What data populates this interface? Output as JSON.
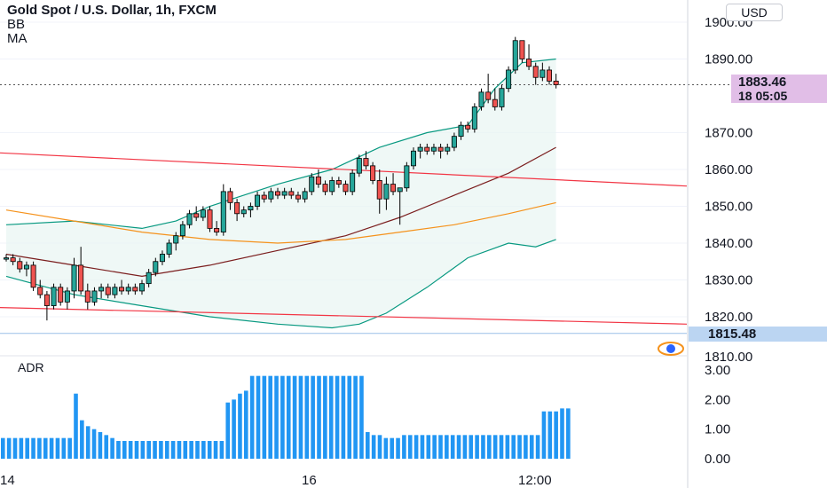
{
  "header": {
    "symbol_title": "Gold Spot / U.S. Dollar, 1h, FXCM",
    "indicators": [
      "BB",
      "MA"
    ],
    "currency": "USD"
  },
  "price_badges": {
    "last_price": "1883.46",
    "countdown_partial": "18 05:05",
    "low_line": "1815.48",
    "cut_label": "1810.00"
  },
  "adr_panel": {
    "label": "ADR",
    "ticks": [
      "3.00",
      "2.00",
      "1.00",
      "0.00"
    ]
  },
  "x_axis": {
    "ticks": [
      "14",
      "16",
      "12:00"
    ]
  },
  "colors": {
    "up": "#26a69a",
    "down": "#ef5350",
    "bb_band": "#089981",
    "bb_fill": "#e8f5f2",
    "ma_short": "#7b1e1e",
    "ma_long": "#f5921c",
    "trendline": "#f23645",
    "adr_bar": "#2196f3",
    "low_line": "#9cc0e8"
  },
  "chart_data": {
    "type": "candlestick",
    "title": "Gold Spot / U.S. Dollar, 1h, FXCM",
    "y_axis": {
      "ticks": [
        1900,
        1890,
        1870,
        1860,
        1850,
        1840,
        1830,
        1820
      ],
      "range": [
        1810,
        1902
      ]
    },
    "ohlc": [
      [
        1836,
        1837,
        1835,
        1836
      ],
      [
        1836,
        1837,
        1834,
        1835
      ],
      [
        1835,
        1836,
        1832,
        1833
      ],
      [
        1833,
        1835,
        1831,
        1834
      ],
      [
        1834,
        1835,
        1827,
        1828
      ],
      [
        1828,
        1830,
        1825,
        1826
      ],
      [
        1826,
        1827,
        1819,
        1823
      ],
      [
        1823,
        1829,
        1822,
        1828
      ],
      [
        1828,
        1829,
        1823,
        1824
      ],
      [
        1824,
        1828,
        1822,
        1827
      ],
      [
        1827,
        1836,
        1825,
        1834
      ],
      [
        1834,
        1839,
        1826,
        1827
      ],
      [
        1827,
        1829,
        1822,
        1824
      ],
      [
        1824,
        1828,
        1823,
        1827
      ],
      [
        1827,
        1829,
        1825,
        1828
      ],
      [
        1828,
        1829,
        1825,
        1826
      ],
      [
        1826,
        1829,
        1825,
        1828
      ],
      [
        1828,
        1830,
        1826,
        1827
      ],
      [
        1827,
        1829,
        1826,
        1828
      ],
      [
        1828,
        1829,
        1826,
        1827
      ],
      [
        1827,
        1830,
        1826,
        1829
      ],
      [
        1829,
        1833,
        1828,
        1832
      ],
      [
        1832,
        1836,
        1831,
        1835
      ],
      [
        1835,
        1838,
        1834,
        1837
      ],
      [
        1837,
        1841,
        1836,
        1840
      ],
      [
        1840,
        1843,
        1838,
        1842
      ],
      [
        1842,
        1846,
        1841,
        1845
      ],
      [
        1845,
        1849,
        1844,
        1848
      ],
      [
        1848,
        1850,
        1846,
        1847
      ],
      [
        1847,
        1850,
        1846,
        1849
      ],
      [
        1849,
        1850,
        1843,
        1844
      ],
      [
        1844,
        1846,
        1842,
        1843
      ],
      [
        1843,
        1856,
        1842,
        1854
      ],
      [
        1854,
        1855,
        1849,
        1851
      ],
      [
        1851,
        1852,
        1846,
        1848
      ],
      [
        1848,
        1850,
        1847,
        1849
      ],
      [
        1849,
        1851,
        1847,
        1850
      ],
      [
        1850,
        1854,
        1849,
        1853
      ],
      [
        1853,
        1854,
        1851,
        1852
      ],
      [
        1852,
        1855,
        1851,
        1854
      ],
      [
        1854,
        1855,
        1852,
        1853
      ],
      [
        1853,
        1855,
        1852,
        1854
      ],
      [
        1854,
        1855,
        1852,
        1853
      ],
      [
        1853,
        1854,
        1851,
        1852
      ],
      [
        1852,
        1855,
        1851,
        1854
      ],
      [
        1854,
        1859,
        1853,
        1858
      ],
      [
        1858,
        1860,
        1855,
        1856
      ],
      [
        1856,
        1857,
        1853,
        1854
      ],
      [
        1854,
        1858,
        1853,
        1857
      ],
      [
        1857,
        1858,
        1855,
        1856
      ],
      [
        1856,
        1857,
        1853,
        1854
      ],
      [
        1854,
        1860,
        1853,
        1859
      ],
      [
        1859,
        1864,
        1858,
        1863
      ],
      [
        1863,
        1865,
        1860,
        1861
      ],
      [
        1861,
        1862,
        1856,
        1857
      ],
      [
        1857,
        1860,
        1848,
        1852
      ],
      [
        1852,
        1858,
        1849,
        1856
      ],
      [
        1856,
        1859,
        1853,
        1854
      ],
      [
        1854,
        1855,
        1845,
        1855
      ],
      [
        1855,
        1862,
        1854,
        1861
      ],
      [
        1861,
        1866,
        1860,
        1865
      ],
      [
        1865,
        1867,
        1863,
        1866
      ],
      [
        1866,
        1867,
        1864,
        1865
      ],
      [
        1865,
        1867,
        1864,
        1866
      ],
      [
        1866,
        1867,
        1863,
        1865
      ],
      [
        1865,
        1867,
        1864,
        1866
      ],
      [
        1866,
        1870,
        1865,
        1869
      ],
      [
        1869,
        1873,
        1868,
        1872
      ],
      [
        1872,
        1873,
        1870,
        1871
      ],
      [
        1871,
        1878,
        1870,
        1877
      ],
      [
        1877,
        1882,
        1876,
        1881
      ],
      [
        1881,
        1886,
        1878,
        1879
      ],
      [
        1879,
        1882,
        1876,
        1877
      ],
      [
        1877,
        1883,
        1876,
        1882
      ],
      [
        1882,
        1888,
        1881,
        1887
      ],
      [
        1887,
        1896,
        1886,
        1895
      ],
      [
        1895,
        1895,
        1889,
        1890
      ],
      [
        1890,
        1894,
        1887,
        1888
      ],
      [
        1888,
        1889,
        1883,
        1885
      ],
      [
        1885,
        1889,
        1884,
        1887
      ],
      [
        1887,
        1888,
        1883,
        1884
      ],
      [
        1884,
        1886,
        1882,
        1883
      ]
    ],
    "bollinger": {
      "upper": [
        [
          0,
          1845
        ],
        [
          10,
          1846
        ],
        [
          20,
          1844
        ],
        [
          25,
          1846
        ],
        [
          30,
          1850
        ],
        [
          40,
          1856
        ],
        [
          48,
          1860
        ],
        [
          55,
          1866
        ],
        [
          62,
          1870
        ],
        [
          68,
          1872
        ],
        [
          72,
          1882
        ],
        [
          76,
          1889
        ],
        [
          81,
          1890
        ]
      ],
      "lower": [
        [
          0,
          1831
        ],
        [
          10,
          1826
        ],
        [
          20,
          1823
        ],
        [
          30,
          1820
        ],
        [
          40,
          1818
        ],
        [
          48,
          1817
        ],
        [
          52,
          1818
        ],
        [
          56,
          1821
        ],
        [
          62,
          1828
        ],
        [
          68,
          1836
        ],
        [
          74,
          1840
        ],
        [
          78,
          1839
        ],
        [
          81,
          1841
        ]
      ]
    },
    "ma_short": [
      [
        0,
        1837
      ],
      [
        10,
        1834
      ],
      [
        20,
        1831
      ],
      [
        30,
        1834
      ],
      [
        40,
        1838
      ],
      [
        50,
        1842
      ],
      [
        58,
        1847
      ],
      [
        66,
        1853
      ],
      [
        74,
        1859
      ],
      [
        81,
        1866
      ]
    ],
    "ma_long": [
      [
        0,
        1849
      ],
      [
        10,
        1846
      ],
      [
        20,
        1843
      ],
      [
        30,
        1841
      ],
      [
        40,
        1840
      ],
      [
        50,
        1841
      ],
      [
        58,
        1843
      ],
      [
        66,
        1845
      ],
      [
        74,
        1848
      ],
      [
        81,
        1851
      ]
    ],
    "trendlines": [
      {
        "x": [
          0,
          100
        ],
        "y": [
          1864.5,
          1855.5
        ]
      },
      {
        "x": [
          0,
          100
        ],
        "y": [
          1822.5,
          1818.0
        ]
      }
    ],
    "horizontal_line": 1815.48,
    "adr": {
      "y_ticks": [
        3,
        2,
        1,
        0
      ],
      "values": [
        0.7,
        0.7,
        0.7,
        0.7,
        0.7,
        0.7,
        0.7,
        0.7,
        0.7,
        0.7,
        0.7,
        0.7,
        2.2,
        1.3,
        1.1,
        1.0,
        0.9,
        0.8,
        0.7,
        0.6,
        0.6,
        0.6,
        0.6,
        0.6,
        0.6,
        0.6,
        0.6,
        0.6,
        0.6,
        0.6,
        0.6,
        0.6,
        0.6,
        0.6,
        0.6,
        0.6,
        0.6,
        1.9,
        2.0,
        2.2,
        2.3,
        2.8,
        2.8,
        2.8,
        2.8,
        2.8,
        2.8,
        2.8,
        2.8,
        2.8,
        2.8,
        2.8,
        2.8,
        2.8,
        2.8,
        2.8,
        2.8,
        2.8,
        2.8,
        2.8,
        0.9,
        0.8,
        0.8,
        0.7,
        0.7,
        0.7,
        0.8,
        0.8,
        0.8,
        0.8,
        0.8,
        0.8,
        0.8,
        0.8,
        0.8,
        0.8,
        0.8,
        0.8,
        0.8,
        0.8,
        0.8,
        0.8,
        0.8,
        0.8,
        0.8,
        0.8,
        0.8,
        0.8,
        0.8,
        1.6,
        1.6,
        1.6,
        1.7,
        1.7
      ]
    }
  }
}
